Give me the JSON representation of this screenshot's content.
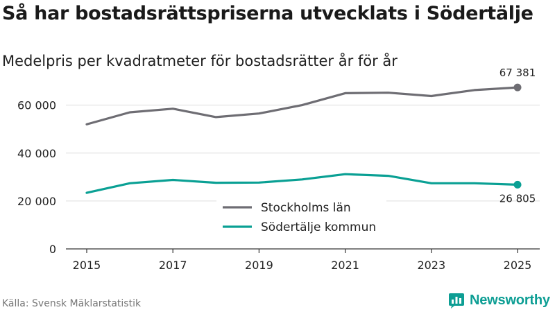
{
  "header": {
    "title": "Så har bostadsrättspriserna utvecklats i Södertälje",
    "subtitle": "Medelpris per kvadratmeter för bostadsrätter år för år"
  },
  "footer": {
    "source": "Källa: Svensk Mäklarstatistik",
    "brand": "Newsworthy"
  },
  "colors": {
    "stockholm": "#6e6d73",
    "sodertalje": "#0aa094",
    "grid": "#dddddd",
    "axis": "#333333",
    "brand": "#0d9e94"
  },
  "chart_data": {
    "type": "line",
    "title": "Så har bostadsrättspriserna utvecklats i Södertälje",
    "subtitle": "Medelpris per kvadratmeter för bostadsrätter år för år",
    "xlabel": "",
    "ylabel": "",
    "x": [
      2015,
      2016,
      2017,
      2018,
      2019,
      2020,
      2021,
      2022,
      2023,
      2024,
      2025
    ],
    "x_ticks": [
      "2015",
      "2017",
      "2019",
      "2021",
      "2023",
      "2025"
    ],
    "y_ticks": [
      0,
      20000,
      40000,
      60000
    ],
    "y_tick_labels": [
      "0",
      "20 000",
      "40 000",
      "60 000"
    ],
    "ylim": [
      0,
      68000
    ],
    "xlim": [
      2015,
      2025
    ],
    "grid": true,
    "legend_position": "bottom-center",
    "series": [
      {
        "name": "Stockholms län",
        "key": "stockholm",
        "values": [
          52000,
          57000,
          58500,
          55000,
          56500,
          60000,
          65000,
          65200,
          63800,
          66300,
          67381
        ],
        "end_label": "67 381"
      },
      {
        "name": "Södertälje kommun",
        "key": "sodertalje",
        "values": [
          23400,
          27400,
          28800,
          27600,
          27700,
          29000,
          31200,
          30500,
          27400,
          27400,
          26805
        ],
        "end_label": "26 805"
      }
    ]
  }
}
